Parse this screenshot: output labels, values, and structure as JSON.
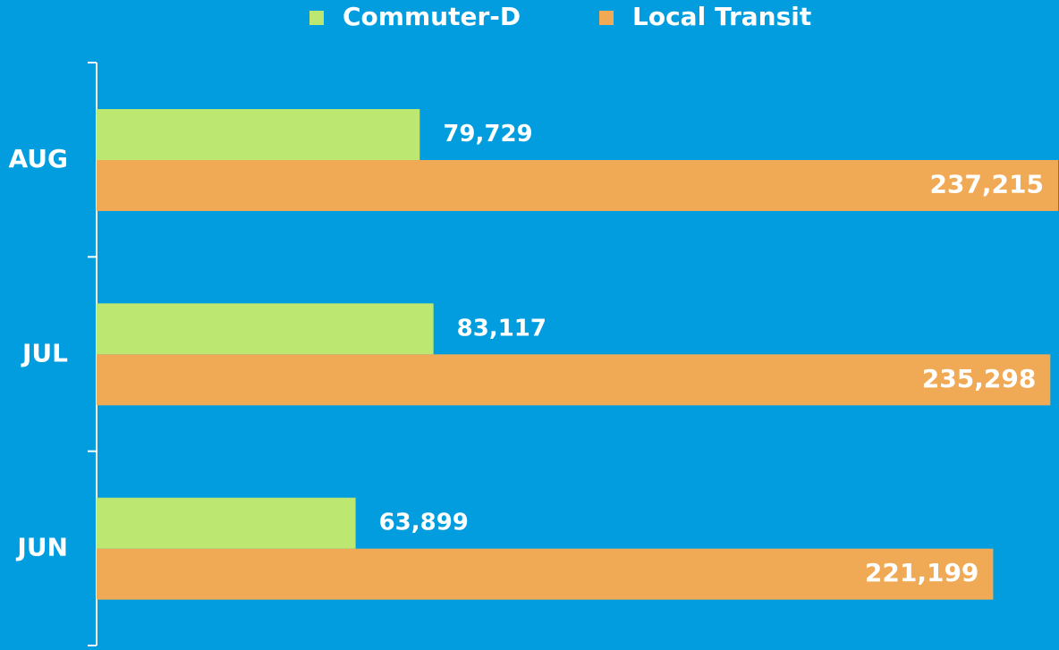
{
  "chart_data": {
    "type": "bar",
    "orientation": "horizontal",
    "categories": [
      "AUG",
      "JUL",
      "JUN"
    ],
    "series": [
      {
        "name": "Commuter-D",
        "color": "#bce872",
        "values": [
          79729,
          83117,
          63899
        ],
        "value_labels": [
          "79,729",
          "83,117",
          "63,899"
        ]
      },
      {
        "name": "Local Transit",
        "color": "#f0aa55",
        "values": [
          237215,
          235298,
          221199
        ],
        "value_labels": [
          "237,215",
          "235,298",
          "221,199"
        ]
      }
    ],
    "legend": "top"
  }
}
